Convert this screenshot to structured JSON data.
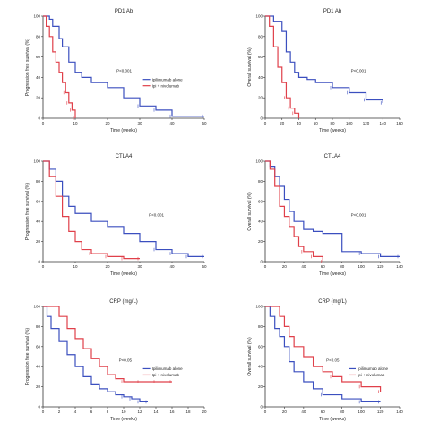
{
  "colors": {
    "blue": "#3b4fbf",
    "red": "#e0404a",
    "axis": "#333333"
  },
  "chart_data": [
    {
      "type": "line",
      "title": "PD1 Ab",
      "xlabel": "Time (weeks)",
      "ylabel": "Progression free survival (%)",
      "xlim": [
        0,
        50
      ],
      "ylim": [
        0,
        100
      ],
      "xticks": [
        0,
        10,
        20,
        30,
        40,
        50
      ],
      "yticks": [
        0,
        20,
        40,
        60,
        80,
        100
      ],
      "legend": "right",
      "pvalue": "P<0.001",
      "series": [
        {
          "name": "Ipilimumab alone",
          "color": "blue",
          "x": [
            0,
            2,
            3,
            5,
            6,
            8,
            10,
            12,
            15,
            20,
            25,
            30,
            35,
            40,
            50
          ],
          "y": [
            100,
            97,
            90,
            78,
            70,
            55,
            45,
            40,
            35,
            30,
            20,
            12,
            8,
            2,
            2
          ]
        },
        {
          "name": "Ipi + nivolumab",
          "color": "red",
          "x": [
            0,
            1,
            2,
            3,
            4,
            5,
            6,
            7,
            8,
            9,
            10
          ],
          "y": [
            100,
            90,
            80,
            65,
            55,
            45,
            35,
            25,
            15,
            8,
            0
          ]
        }
      ]
    },
    {
      "type": "line",
      "title": "PD1 Ab",
      "xlabel": "Time (weeks)",
      "ylabel": "Overall survival (%)",
      "xlim": [
        0,
        160
      ],
      "ylim": [
        0,
        100
      ],
      "xticks": [
        0,
        20,
        40,
        60,
        80,
        100,
        120,
        140,
        160
      ],
      "yticks": [
        0,
        20,
        40,
        60,
        80,
        100
      ],
      "pvalue": "P<0.001",
      "series": [
        {
          "name": "",
          "color": "blue",
          "x": [
            0,
            10,
            20,
            25,
            30,
            35,
            40,
            50,
            60,
            80,
            100,
            120,
            140
          ],
          "y": [
            100,
            95,
            85,
            65,
            55,
            45,
            40,
            38,
            35,
            30,
            25,
            18,
            15
          ]
        },
        {
          "name": "",
          "color": "red",
          "x": [
            0,
            5,
            10,
            15,
            20,
            25,
            30,
            35,
            40
          ],
          "y": [
            100,
            90,
            70,
            50,
            35,
            20,
            10,
            5,
            0
          ]
        }
      ]
    },
    {
      "type": "line",
      "title": "CTLA4",
      "xlabel": "Time (weeks)",
      "ylabel": "Progression free survival (%)",
      "xlim": [
        0,
        50
      ],
      "ylim": [
        0,
        100
      ],
      "xticks": [
        0,
        10,
        20,
        30,
        40,
        50
      ],
      "yticks": [
        0,
        20,
        40,
        60,
        80,
        100
      ],
      "pvalue": "P<0.001",
      "series": [
        {
          "name": "",
          "color": "blue",
          "x": [
            0,
            2,
            4,
            6,
            8,
            10,
            15,
            20,
            25,
            30,
            35,
            40,
            45,
            50
          ],
          "y": [
            100,
            92,
            80,
            65,
            55,
            48,
            40,
            35,
            28,
            20,
            12,
            8,
            5,
            5
          ]
        },
        {
          "name": "",
          "color": "red",
          "x": [
            0,
            2,
            4,
            6,
            8,
            10,
            12,
            15,
            20,
            25,
            30
          ],
          "y": [
            100,
            85,
            65,
            45,
            30,
            20,
            12,
            8,
            5,
            3,
            3
          ]
        }
      ]
    },
    {
      "type": "line",
      "title": "CTLA4",
      "xlabel": "Time (weeks)",
      "ylabel": "Overall survival (%)",
      "xlim": [
        0,
        140
      ],
      "ylim": [
        0,
        100
      ],
      "xticks": [
        0,
        20,
        40,
        60,
        80,
        100,
        120,
        140
      ],
      "yticks": [
        0,
        20,
        40,
        60,
        80,
        100
      ],
      "pvalue": "P<0.001",
      "series": [
        {
          "name": "",
          "color": "blue",
          "x": [
            0,
            5,
            10,
            15,
            20,
            25,
            30,
            40,
            50,
            60,
            80,
            100,
            120,
            140
          ],
          "y": [
            100,
            95,
            85,
            75,
            62,
            50,
            40,
            32,
            30,
            28,
            10,
            8,
            5,
            5
          ]
        },
        {
          "name": "",
          "color": "red",
          "x": [
            0,
            5,
            10,
            15,
            20,
            25,
            30,
            35,
            40,
            50,
            60
          ],
          "y": [
            100,
            92,
            75,
            55,
            45,
            35,
            25,
            15,
            10,
            5,
            0
          ]
        }
      ]
    },
    {
      "type": "line",
      "title": "CRP (mg/L)",
      "xlabel": "Time (weeks)",
      "ylabel": "Progression free survival (%)",
      "xlim": [
        0,
        20
      ],
      "ylim": [
        0,
        100
      ],
      "xticks": [
        0,
        2,
        4,
        6,
        8,
        10,
        12,
        14,
        16,
        18,
        20
      ],
      "yticks": [
        0,
        20,
        40,
        60,
        80,
        100
      ],
      "legend": "right",
      "pvalue": "P<0.05",
      "series": [
        {
          "name": "Ipilimumab alone",
          "color": "blue",
          "x": [
            0,
            0.5,
            1,
            2,
            3,
            4,
            5,
            6,
            7,
            8,
            9,
            10,
            11,
            12,
            13
          ],
          "y": [
            100,
            90,
            78,
            65,
            52,
            40,
            30,
            22,
            18,
            15,
            12,
            10,
            8,
            5,
            5
          ]
        },
        {
          "name": "Ipi + nivolumab",
          "color": "red",
          "x": [
            0,
            1,
            2,
            3,
            4,
            5,
            6,
            7,
            8,
            9,
            10,
            12,
            14,
            16
          ],
          "y": [
            100,
            100,
            90,
            78,
            68,
            58,
            48,
            40,
            32,
            28,
            25,
            25,
            25,
            25
          ]
        }
      ]
    },
    {
      "type": "line",
      "title": "CRP (mg/L)",
      "xlabel": "Time (weeks)",
      "ylabel": "Overall survival (%)",
      "xlim": [
        0,
        140
      ],
      "ylim": [
        0,
        100
      ],
      "xticks": [
        0,
        20,
        40,
        60,
        80,
        100,
        120,
        140
      ],
      "yticks": [
        0,
        20,
        40,
        60,
        80,
        100
      ],
      "legend": "right",
      "pvalue": "P<0.05",
      "series": [
        {
          "name": "Ipilimumab alone",
          "color": "blue",
          "x": [
            0,
            5,
            10,
            15,
            20,
            25,
            30,
            40,
            50,
            60,
            80,
            100,
            120
          ],
          "y": [
            100,
            90,
            78,
            70,
            60,
            45,
            35,
            25,
            18,
            12,
            8,
            5,
            5
          ]
        },
        {
          "name": "Ipi + nivolumab",
          "color": "red",
          "x": [
            0,
            10,
            15,
            20,
            25,
            30,
            40,
            50,
            60,
            70,
            80,
            100,
            120
          ],
          "y": [
            100,
            100,
            90,
            80,
            70,
            60,
            50,
            40,
            35,
            30,
            25,
            20,
            15
          ]
        }
      ]
    }
  ]
}
